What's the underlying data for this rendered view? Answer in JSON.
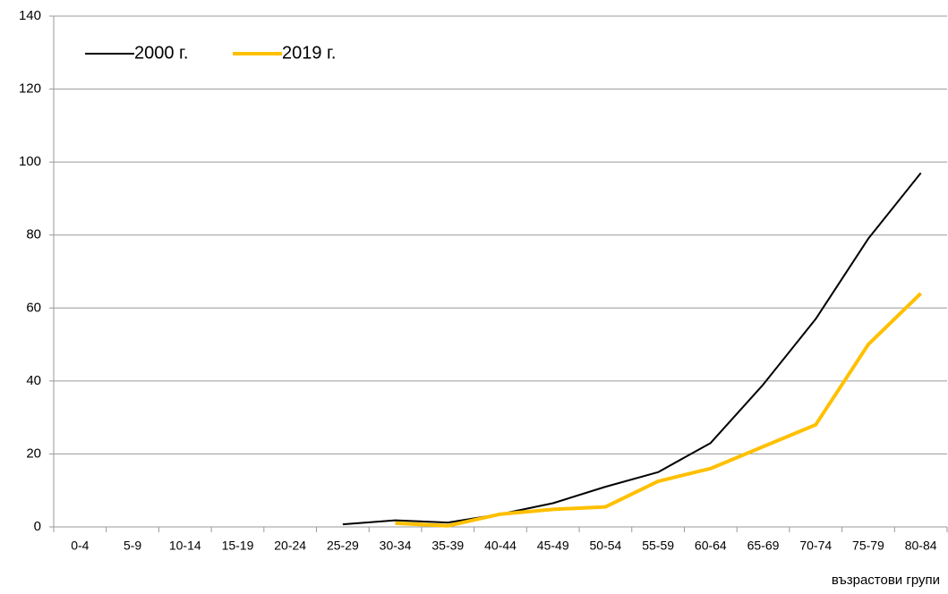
{
  "chart_data": {
    "type": "line",
    "x_label": "възрастови групи",
    "categories": [
      "0-4",
      "5-9",
      "10-14",
      "15-19",
      "20-24",
      "25-29",
      "30-34",
      "35-39",
      "40-44",
      "45-49",
      "50-54",
      "55-59",
      "60-64",
      "65-69",
      "70-74",
      "75-79",
      "80-84"
    ],
    "series": [
      {
        "name": "2000 г.",
        "color": "#000000",
        "values": [
          null,
          null,
          null,
          null,
          null,
          0.7,
          1.8,
          1.2,
          3.5,
          6.5,
          11,
          15,
          23,
          39,
          57,
          79,
          97
        ]
      },
      {
        "name": "2019 г.",
        "color": "#ffc000",
        "values": [
          null,
          null,
          null,
          null,
          null,
          null,
          1,
          0.3,
          3.5,
          4.8,
          5.5,
          12.5,
          16,
          22,
          28,
          50,
          64
        ]
      }
    ],
    "ylim": [
      0,
      140
    ],
    "yticks": [
      0,
      20,
      40,
      60,
      80,
      100,
      120,
      140
    ],
    "grid": true,
    "legend": "top-left"
  }
}
